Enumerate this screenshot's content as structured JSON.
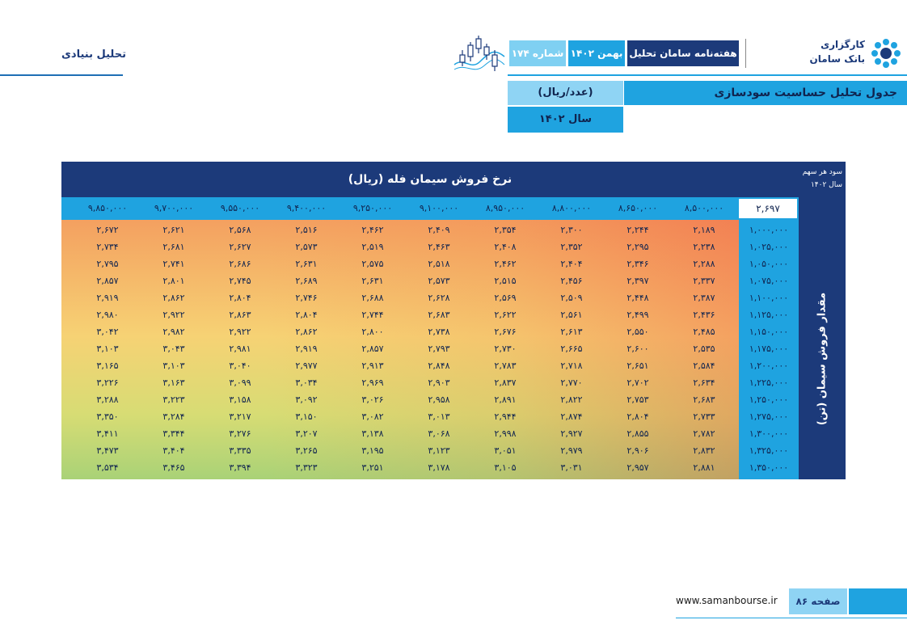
{
  "header": {
    "section_title": "تحلیل بنیادی",
    "brand_line1": "کارگزاری",
    "brand_line2": "بانک سامان",
    "publication": "هفته‌نامه سامان تحلیل",
    "month": "بهمن ۱۴۰۲",
    "issue": "شماره ۱۷۴"
  },
  "table_title": {
    "main": "جدول تحلیل حساسیت سودسازی",
    "unit": "(عدد/ریال)",
    "year": "سال ۱۴۰۲"
  },
  "table": {
    "corner_line1": "سود هر سهم",
    "corner_line2": "سال ۱۴۰۲",
    "top_header": "نرخ فروش سیمان فله (ریال)",
    "side_header": "مقدار فروش سیمان (تن)",
    "base_value": "۲,۶۹۷",
    "prices": [
      "۸,۵۰۰,۰۰۰",
      "۸,۶۵۰,۰۰۰",
      "۸,۸۰۰,۰۰۰",
      "۸,۹۵۰,۰۰۰",
      "۹,۱۰۰,۰۰۰",
      "۹,۲۵۰,۰۰۰",
      "۹,۴۰۰,۰۰۰",
      "۹,۵۵۰,۰۰۰",
      "۹,۷۰۰,۰۰۰",
      "۹,۸۵۰,۰۰۰"
    ],
    "quantities": [
      "۱,۰۰۰,۰۰۰",
      "۱,۰۲۵,۰۰۰",
      "۱,۰۵۰,۰۰۰",
      "۱,۰۷۵,۰۰۰",
      "۱,۱۰۰,۰۰۰",
      "۱,۱۲۵,۰۰۰",
      "۱,۱۵۰,۰۰۰",
      "۱,۱۷۵,۰۰۰",
      "۱,۲۰۰,۰۰۰",
      "۱,۲۲۵,۰۰۰",
      "۱,۲۵۰,۰۰۰",
      "۱,۲۷۵,۰۰۰",
      "۱,۳۰۰,۰۰۰",
      "۱,۳۲۵,۰۰۰",
      "۱,۳۵۰,۰۰۰"
    ],
    "rows": [
      [
        "۲,۱۸۹",
        "۲,۲۴۴",
        "۲,۳۰۰",
        "۲,۳۵۴",
        "۲,۴۰۹",
        "۲,۴۶۲",
        "۲,۵۱۶",
        "۲,۵۶۸",
        "۲,۶۲۱",
        "۲,۶۷۲"
      ],
      [
        "۲,۲۳۸",
        "۲,۲۹۵",
        "۲,۳۵۲",
        "۲,۴۰۸",
        "۲,۴۶۳",
        "۲,۵۱۹",
        "۲,۵۷۳",
        "۲,۶۲۷",
        "۲,۶۸۱",
        "۲,۷۳۴"
      ],
      [
        "۲,۲۸۸",
        "۲,۳۴۶",
        "۲,۴۰۴",
        "۲,۴۶۲",
        "۲,۵۱۸",
        "۲,۵۷۵",
        "۲,۶۳۱",
        "۲,۶۸۶",
        "۲,۷۴۱",
        "۲,۷۹۵"
      ],
      [
        "۲,۳۳۷",
        "۲,۳۹۷",
        "۲,۴۵۶",
        "۲,۵۱۵",
        "۲,۵۷۳",
        "۲,۶۳۱",
        "۲,۶۸۹",
        "۲,۷۴۵",
        "۲,۸۰۱",
        "۲,۸۵۷"
      ],
      [
        "۲,۳۸۷",
        "۲,۴۴۸",
        "۲,۵۰۹",
        "۲,۵۶۹",
        "۲,۶۲۸",
        "۲,۶۸۸",
        "۲,۷۴۶",
        "۲,۸۰۴",
        "۲,۸۶۲",
        "۲,۹۱۹"
      ],
      [
        "۲,۴۳۶",
        "۲,۴۹۹",
        "۲,۵۶۱",
        "۲,۶۲۲",
        "۲,۶۸۳",
        "۲,۷۴۴",
        "۲,۸۰۴",
        "۲,۸۶۳",
        "۲,۹۲۲",
        "۲,۹۸۰"
      ],
      [
        "۲,۴۸۵",
        "۲,۵۵۰",
        "۲,۶۱۳",
        "۲,۶۷۶",
        "۲,۷۳۸",
        "۲,۸۰۰",
        "۲,۸۶۲",
        "۲,۹۲۲",
        "۲,۹۸۲",
        "۳,۰۴۲"
      ],
      [
        "۲,۵۳۵",
        "۲,۶۰۰",
        "۲,۶۶۵",
        "۲,۷۳۰",
        "۲,۷۹۳",
        "۲,۸۵۷",
        "۲,۹۱۹",
        "۲,۹۸۱",
        "۳,۰۴۳",
        "۳,۱۰۳"
      ],
      [
        "۲,۵۸۴",
        "۲,۶۵۱",
        "۲,۷۱۸",
        "۲,۷۸۳",
        "۲,۸۴۸",
        "۲,۹۱۳",
        "۲,۹۷۷",
        "۳,۰۴۰",
        "۳,۱۰۳",
        "۳,۱۶۵"
      ],
      [
        "۲,۶۳۴",
        "۲,۷۰۲",
        "۲,۷۷۰",
        "۲,۸۳۷",
        "۲,۹۰۳",
        "۲,۹۶۹",
        "۳,۰۳۴",
        "۳,۰۹۹",
        "۳,۱۶۳",
        "۳,۲۲۶"
      ],
      [
        "۲,۶۸۳",
        "۲,۷۵۳",
        "۲,۸۲۲",
        "۲,۸۹۱",
        "۲,۹۵۸",
        "۳,۰۲۶",
        "۳,۰۹۲",
        "۳,۱۵۸",
        "۳,۲۲۳",
        "۳,۲۸۸"
      ],
      [
        "۲,۷۳۳",
        "۲,۸۰۴",
        "۲,۸۷۴",
        "۲,۹۴۴",
        "۳,۰۱۳",
        "۳,۰۸۲",
        "۳,۱۵۰",
        "۳,۲۱۷",
        "۳,۲۸۴",
        "۳,۳۵۰"
      ],
      [
        "۲,۷۸۲",
        "۲,۸۵۵",
        "۲,۹۲۷",
        "۲,۹۹۸",
        "۳,۰۶۸",
        "۳,۱۳۸",
        "۳,۲۰۷",
        "۳,۲۷۶",
        "۳,۳۴۴",
        "۳,۴۱۱"
      ],
      [
        "۲,۸۳۲",
        "۲,۹۰۶",
        "۲,۹۷۹",
        "۳,۰۵۱",
        "۳,۱۲۳",
        "۳,۱۹۵",
        "۳,۲۶۵",
        "۳,۳۳۵",
        "۳,۴۰۴",
        "۳,۴۷۳"
      ],
      [
        "۲,۸۸۱",
        "۲,۹۵۷",
        "۳,۰۳۱",
        "۳,۱۰۵",
        "۳,۱۷۸",
        "۳,۲۵۱",
        "۳,۳۲۳",
        "۳,۳۹۴",
        "۳,۴۶۵",
        "۳,۵۳۴"
      ]
    ]
  },
  "footer": {
    "url": "www.samanbourse.ir",
    "page": "صفحه ۸۶"
  },
  "colors": {
    "navy": "#1c3a7a",
    "blue": "#1fa3e0",
    "light_blue": "#8fd4f4"
  }
}
